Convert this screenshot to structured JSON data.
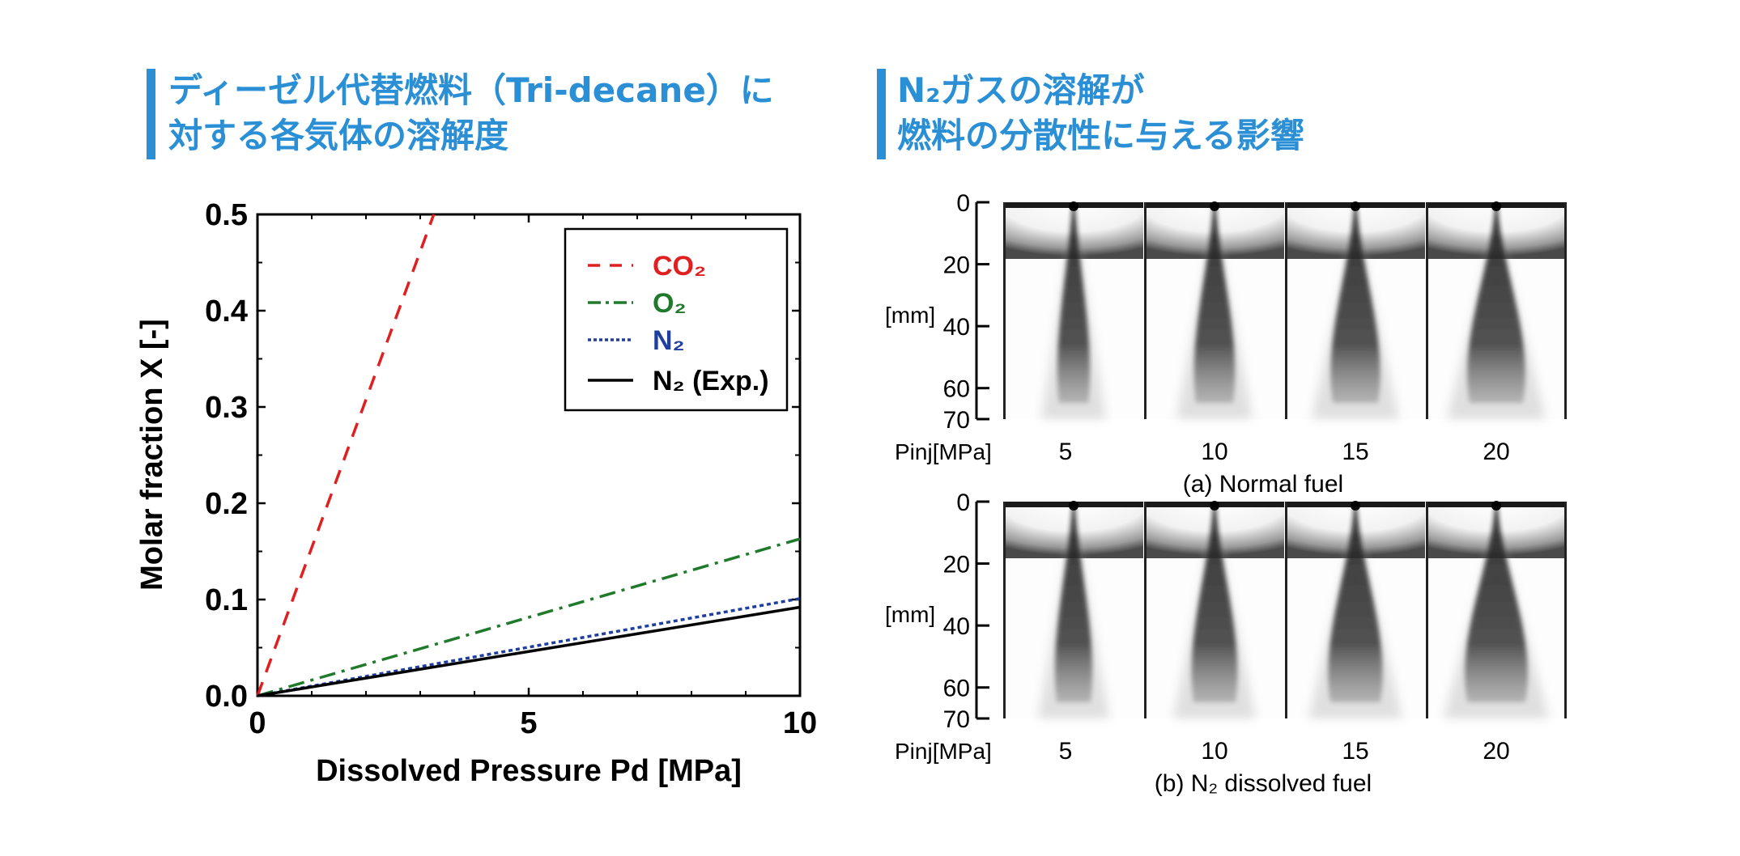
{
  "headings": {
    "left": {
      "line1": "ディーゼル代替燃料（Tri-decane）に",
      "line2": "対する各気体の溶解度"
    },
    "right": {
      "line1": "N₂ガスの溶解が",
      "line2": "燃料の分散性に与える影響"
    }
  },
  "colors": {
    "heading": "#2a8fd4",
    "co2": "#e02020",
    "o2": "#1f7a2c",
    "n2": "#1f3fa0",
    "n2_exp": "#000000"
  },
  "chart_data": [
    {
      "type": "line",
      "xlabel": "Dissolved Pressure Pd [MPa]",
      "ylabel": "Molar fraction X  [-]",
      "xlim": [
        0,
        10
      ],
      "ylim": [
        0,
        0.5
      ],
      "xticks": [
        "0",
        "5",
        "10"
      ],
      "yticks": [
        "0.0",
        "0.1",
        "0.2",
        "0.3",
        "0.4",
        "0.5"
      ],
      "legend_position": "top-right",
      "series": [
        {
          "name": "CO₂",
          "style": "dashed",
          "color": "#e02020",
          "x": [
            0,
            3.25
          ],
          "y": [
            0,
            0.5
          ]
        },
        {
          "name": "O₂",
          "style": "dash-dot",
          "color": "#1f7a2c",
          "x": [
            0,
            10
          ],
          "y": [
            0,
            0.163
          ]
        },
        {
          "name": "N₂",
          "style": "dotted",
          "color": "#1f3fa0",
          "x": [
            0,
            10
          ],
          "y": [
            0,
            0.101
          ]
        },
        {
          "name": "N₂ (Exp.)",
          "style": "solid",
          "color": "#000000",
          "x": [
            0,
            10
          ],
          "y": [
            0,
            0.092
          ]
        }
      ]
    }
  ],
  "spray": {
    "unit_label": "[mm]",
    "axis_ticks": [
      "0",
      "20",
      "40",
      "60",
      "70"
    ],
    "pinj_label": "Pinj[MPa]",
    "pressures": [
      "5",
      "10",
      "15",
      "20"
    ],
    "panels": [
      {
        "caption": "(a) Normal fuel"
      },
      {
        "caption": "(b) N₂  dissolved fuel"
      }
    ]
  }
}
